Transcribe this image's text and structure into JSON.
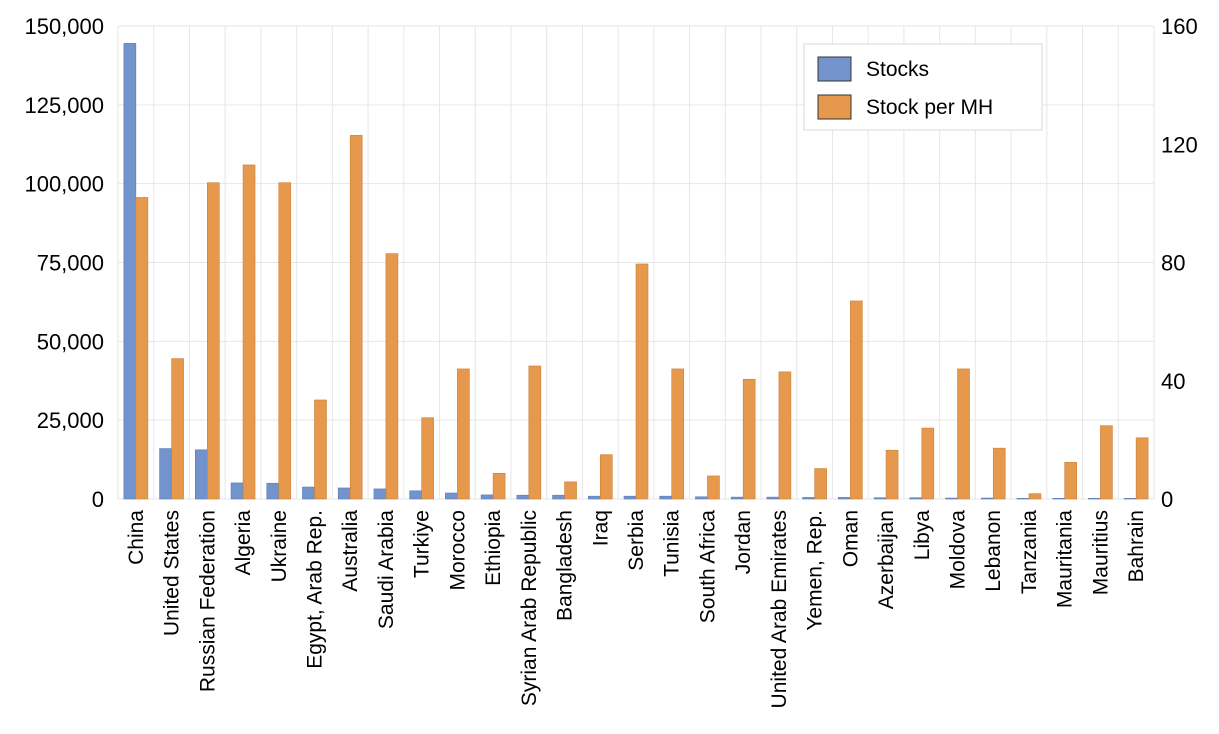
{
  "chart_data": {
    "type": "bar",
    "categories": [
      "China",
      "United States",
      "Russian Federation",
      "Algeria",
      "Ukraine",
      "Egypt, Arab Rep.",
      "Australia",
      "Saudi Arabia",
      "Turkiye",
      "Morocco",
      "Ethiopia",
      "Syrian Arab Republic",
      "Bangladesh",
      "Iraq",
      "Serbia",
      "Tunisia",
      "South Africa",
      "Jordan",
      "United Arab Emirates",
      "Yemen, Rep.",
      "Oman",
      "Azerbaijan",
      "Libya",
      "Moldova",
      "Lebanon",
      "Tanzania",
      "Mauritania",
      "Mauritius",
      "Bahrain"
    ],
    "series": [
      {
        "name": "Stocks",
        "axis": "left",
        "color": "#7393cd",
        "values": [
          144500,
          16000,
          15600,
          5100,
          5000,
          3800,
          3500,
          3200,
          2600,
          1900,
          1300,
          1200,
          1200,
          900,
          900,
          900,
          700,
          600,
          600,
          500,
          500,
          400,
          400,
          300,
          300,
          200,
          200,
          200,
          200
        ]
      },
      {
        "name": "Stock per MH",
        "axis": "right",
        "color": "#e6994c",
        "values": [
          102,
          47.5,
          107,
          113,
          107,
          33.5,
          123,
          83,
          27.5,
          44,
          8.7,
          45,
          5.8,
          15,
          79.5,
          44,
          7.8,
          40.5,
          43,
          10.3,
          67,
          16.5,
          24,
          44,
          17.2,
          1.8,
          12.4,
          24.8,
          20.7
        ]
      }
    ],
    "y_left": {
      "min": 0,
      "max": 150000,
      "ticks": [
        0,
        25000,
        50000,
        75000,
        100000,
        125000,
        150000
      ],
      "tick_labels": [
        "0",
        "25,000",
        "50,000",
        "75,000",
        "100,000",
        "125,000",
        "150,000"
      ]
    },
    "y_right": {
      "min": 0,
      "max": 160,
      "ticks": [
        0,
        40,
        80,
        120,
        160
      ],
      "tick_labels": [
        "0",
        "40",
        "80",
        "120",
        "160"
      ]
    },
    "grid": true,
    "legend_position": "top-right",
    "title": "",
    "xlabel": "",
    "ylabel": ""
  }
}
